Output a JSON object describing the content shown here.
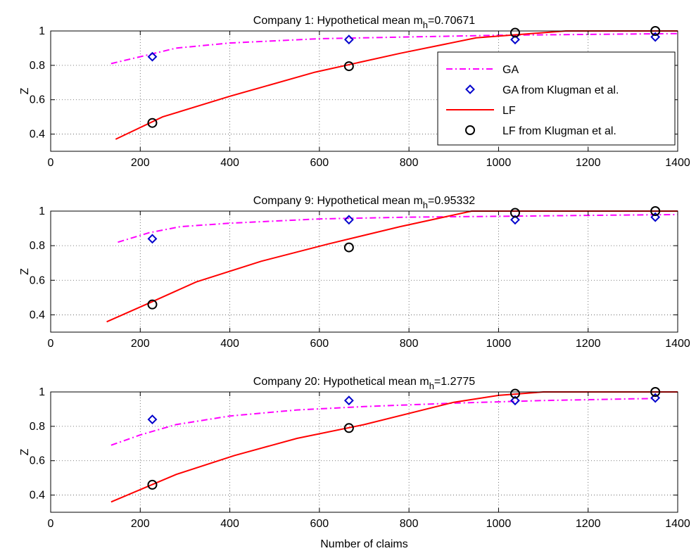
{
  "figure": {
    "xlabel": "Number of claims"
  },
  "chart_data": [
    {
      "type": "line",
      "title_prefix": "Company 1: Hypothetical mean m",
      "title_sub": "h",
      "title_suffix": "=0.70671",
      "ylabel": "Z",
      "xlim": [
        0,
        1400
      ],
      "ylim": [
        0.3,
        1.0
      ],
      "xticks": [
        0,
        200,
        400,
        600,
        800,
        1000,
        1200,
        1400
      ],
      "yticks": [
        0.4,
        0.6,
        0.8,
        1
      ],
      "grid": true,
      "legend": true,
      "legend_position": "right",
      "series": [
        {
          "name": "GA",
          "kind": "line",
          "style": "dashdot",
          "color": "#ff00ff",
          "x": [
            135,
            200,
            280,
            400,
            600,
            800,
            1000,
            1200,
            1400
          ],
          "y": [
            0.81,
            0.85,
            0.9,
            0.93,
            0.955,
            0.965,
            0.975,
            0.98,
            0.985
          ]
        },
        {
          "name": "GA from Klugman et al.",
          "kind": "marker",
          "marker": "diamond",
          "color": "#0000cc",
          "x": [
            227,
            666,
            1037,
            1350
          ],
          "y": [
            0.85,
            0.95,
            0.95,
            0.965
          ]
        },
        {
          "name": "LF",
          "kind": "line",
          "style": "solid",
          "color": "#ff0000",
          "x": [
            145,
            250,
            400,
            590,
            780,
            950,
            1150,
            1400
          ],
          "y": [
            0.37,
            0.5,
            0.62,
            0.76,
            0.87,
            0.96,
            1.0,
            1.0
          ]
        },
        {
          "name": "LF from Klugman et al.",
          "kind": "marker",
          "marker": "circle",
          "color": "#000000",
          "x": [
            227,
            666,
            1037,
            1350
          ],
          "y": [
            0.465,
            0.795,
            0.99,
            1.0
          ]
        }
      ]
    },
    {
      "type": "line",
      "title_prefix": "Company 9: Hypothetical mean m",
      "title_sub": "h",
      "title_suffix": "=0.95332",
      "ylabel": "Z",
      "xlim": [
        0,
        1400
      ],
      "ylim": [
        0.3,
        1.0
      ],
      "xticks": [
        0,
        200,
        400,
        600,
        800,
        1000,
        1200,
        1400
      ],
      "yticks": [
        0.4,
        0.6,
        0.8,
        1
      ],
      "grid": true,
      "legend": false,
      "series": [
        {
          "name": "GA",
          "kind": "line",
          "style": "dashdot",
          "color": "#ff00ff",
          "x": [
            150,
            220,
            290,
            400,
            600,
            800,
            1000,
            1200,
            1400
          ],
          "y": [
            0.82,
            0.875,
            0.91,
            0.93,
            0.955,
            0.965,
            0.97,
            0.975,
            0.98
          ]
        },
        {
          "name": "GA from Klugman et al.",
          "kind": "marker",
          "marker": "diamond",
          "color": "#0000cc",
          "x": [
            227,
            666,
            1037,
            1350
          ],
          "y": [
            0.84,
            0.95,
            0.95,
            0.965
          ]
        },
        {
          "name": "LF",
          "kind": "line",
          "style": "solid",
          "color": "#ff0000",
          "x": [
            125,
            230,
            325,
            470,
            620,
            780,
            940,
            1000,
            1400
          ],
          "y": [
            0.36,
            0.48,
            0.59,
            0.71,
            0.81,
            0.91,
            1.0,
            1.0,
            1.0
          ]
        },
        {
          "name": "LF from Klugman et al.",
          "kind": "marker",
          "marker": "circle",
          "color": "#000000",
          "x": [
            227,
            666,
            1037,
            1350
          ],
          "y": [
            0.46,
            0.79,
            0.99,
            1.0
          ]
        }
      ]
    },
    {
      "type": "line",
      "title_prefix": "Company 20: Hypothetical mean m",
      "title_sub": "h",
      "title_suffix": "=1.2775",
      "ylabel": "Z",
      "xlabel": "Number of claims",
      "xlim": [
        0,
        1400
      ],
      "ylim": [
        0.3,
        1.0
      ],
      "xticks": [
        0,
        200,
        400,
        600,
        800,
        1000,
        1200,
        1400
      ],
      "yticks": [
        0.4,
        0.6,
        0.8,
        1
      ],
      "grid": true,
      "legend": false,
      "series": [
        {
          "name": "GA",
          "kind": "line",
          "style": "dashdot",
          "color": "#ff00ff",
          "x": [
            135,
            200,
            280,
            400,
            550,
            700,
            900,
            1100,
            1300,
            1350
          ],
          "y": [
            0.69,
            0.75,
            0.81,
            0.86,
            0.895,
            0.915,
            0.935,
            0.95,
            0.96,
            0.962
          ]
        },
        {
          "name": "GA from Klugman et al.",
          "kind": "marker",
          "marker": "diamond",
          "color": "#0000cc",
          "x": [
            227,
            666,
            1037,
            1350
          ],
          "y": [
            0.84,
            0.95,
            0.95,
            0.965
          ]
        },
        {
          "name": "LF",
          "kind": "line",
          "style": "solid",
          "color": "#ff0000",
          "x": [
            135,
            280,
            410,
            550,
            700,
            900,
            1000,
            1100,
            1400
          ],
          "y": [
            0.36,
            0.52,
            0.63,
            0.73,
            0.81,
            0.94,
            0.98,
            1.0,
            1.0
          ]
        },
        {
          "name": "LF from Klugman et al.",
          "kind": "marker",
          "marker": "circle",
          "color": "#000000",
          "x": [
            227,
            666,
            1037,
            1350
          ],
          "y": [
            0.46,
            0.79,
            0.99,
            1.0
          ]
        }
      ]
    }
  ]
}
